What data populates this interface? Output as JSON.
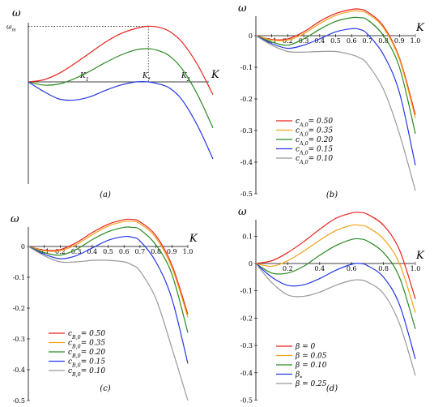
{
  "colors": {
    "red": "#e8231f",
    "orange": "#f3a21c",
    "green": "#2a8a22",
    "blue": "#2438e6",
    "gray": "#999999"
  },
  "chart_data": [
    {
      "panel": "(a)",
      "type": "line",
      "ylabel": "ω",
      "xlabel": "K",
      "annotations": {
        "omega_max": "ω_m",
        "k1": "K_1",
        "kstar": "K_*",
        "k2": "K_2"
      },
      "x": [
        0.0,
        0.1,
        0.2,
        0.3,
        0.4,
        0.5,
        0.6,
        0.7,
        0.78,
        0.85,
        0.92,
        1.0,
        1.1,
        1.2
      ],
      "series": [
        {
          "color": "red",
          "values": [
            0,
            0.02,
            0.08,
            0.17,
            0.27,
            0.37,
            0.45,
            0.5,
            0.52,
            0.51,
            0.47,
            0.37,
            0.16,
            -0.12
          ]
        },
        {
          "color": "green",
          "values": [
            0,
            -0.03,
            -0.02,
            0.03,
            0.1,
            0.18,
            0.25,
            0.3,
            0.31,
            0.29,
            0.24,
            0.12,
            -0.12,
            -0.43
          ]
        },
        {
          "color": "blue",
          "values": [
            0,
            -0.09,
            -0.16,
            -0.17,
            -0.14,
            -0.08,
            -0.03,
            0.0,
            0.0,
            -0.02,
            -0.06,
            -0.17,
            -0.41,
            -0.72
          ]
        }
      ]
    },
    {
      "panel": "(b)",
      "type": "line",
      "ylabel": "ω",
      "xlabel": "K",
      "xticks": [
        "0.1",
        "0.2",
        "0.3",
        "0.4",
        "0.5",
        "0.6",
        "0.7",
        "0.8",
        "0.9",
        "1.0"
      ],
      "yticks": [
        "0",
        "-0.1",
        "-0.2",
        "-0.3",
        "-0.4",
        "-0.5"
      ],
      "xlim": [
        0,
        1.0
      ],
      "ylim": [
        -0.5,
        0.08
      ],
      "legend": [
        "c_{A,0}= 0.50",
        "c_{A,0}= 0.35",
        "c_{A,0}= 0.20",
        "c_{A,0}= 0.15",
        "c_{A,0}= 0.10"
      ],
      "x": [
        0.0,
        0.1,
        0.2,
        0.3,
        0.4,
        0.5,
        0.6,
        0.65,
        0.7,
        0.8,
        0.9,
        1.0
      ],
      "series": [
        {
          "name": "c_{A,0}= 0.50",
          "color": "red",
          "values": [
            0,
            -0.012,
            -0.01,
            0.012,
            0.045,
            0.07,
            0.083,
            0.084,
            0.075,
            0.03,
            -0.07,
            -0.25
          ]
        },
        {
          "name": "c_{A,0}= 0.35",
          "color": "orange",
          "values": [
            0,
            -0.014,
            -0.014,
            0.006,
            0.038,
            0.064,
            0.077,
            0.078,
            0.07,
            0.025,
            -0.075,
            -0.26
          ]
        },
        {
          "name": "c_{A,0}= 0.20",
          "color": "green",
          "values": [
            0,
            -0.02,
            -0.03,
            -0.01,
            0.02,
            0.045,
            0.057,
            0.057,
            0.05,
            0.0,
            -0.1,
            -0.31
          ]
        },
        {
          "name": "c_{A,0}= 0.15",
          "color": "blue",
          "values": [
            0,
            -0.025,
            -0.04,
            -0.03,
            -0.01,
            0.012,
            0.022,
            0.02,
            0.005,
            -0.06,
            -0.18,
            -0.41
          ]
        },
        {
          "name": "c_{A,0}= 0.10",
          "color": "gray",
          "values": [
            0,
            -0.03,
            -0.05,
            -0.052,
            -0.05,
            -0.05,
            -0.06,
            -0.07,
            -0.09,
            -0.17,
            -0.31,
            -0.49
          ]
        }
      ]
    },
    {
      "panel": "(c)",
      "type": "line",
      "ylabel": "ω",
      "xlabel": "K",
      "xticks": [
        "0.1",
        "0.2",
        "0.3",
        "0.4",
        "0.5",
        "0.6",
        "0.7",
        "0.8",
        "0.9",
        "1.0"
      ],
      "yticks": [
        "0",
        "-0.1",
        "-0.2",
        "-0.3",
        "-0.4",
        "-0.5"
      ],
      "xlim": [
        0,
        1.0
      ],
      "ylim": [
        -0.5,
        0.09
      ],
      "legend": [
        "c_{B,0}= 0.50",
        "c_{B,0}= 0.35",
        "c_{B,0}= 0.20",
        "c_{B,0}= 0.15",
        "c_{B,0}= 0.10"
      ],
      "x": [
        0.0,
        0.1,
        0.2,
        0.3,
        0.4,
        0.5,
        0.6,
        0.65,
        0.7,
        0.8,
        0.9,
        1.0
      ],
      "series": [
        {
          "name": "c_{B,0}= 0.50",
          "color": "red",
          "values": [
            0,
            -0.012,
            -0.01,
            0.012,
            0.045,
            0.072,
            0.087,
            0.088,
            0.08,
            0.035,
            -0.06,
            -0.22
          ]
        },
        {
          "name": "c_{B,0}= 0.35",
          "color": "orange",
          "values": [
            0,
            -0.014,
            -0.014,
            0.006,
            0.038,
            0.066,
            0.081,
            0.082,
            0.074,
            0.028,
            -0.068,
            -0.23
          ]
        },
        {
          "name": "c_{B,0}= 0.20",
          "color": "green",
          "values": [
            0,
            -0.02,
            -0.028,
            -0.01,
            0.022,
            0.048,
            0.062,
            0.062,
            0.055,
            0.005,
            -0.09,
            -0.28
          ]
        },
        {
          "name": "c_{B,0}= 0.15",
          "color": "blue",
          "values": [
            0,
            -0.025,
            -0.04,
            -0.03,
            -0.005,
            0.02,
            0.032,
            0.03,
            0.018,
            -0.05,
            -0.17,
            -0.38
          ]
        },
        {
          "name": "c_{B,0}= 0.10",
          "color": "gray",
          "values": [
            0,
            -0.03,
            -0.05,
            -0.05,
            -0.045,
            -0.045,
            -0.05,
            -0.06,
            -0.08,
            -0.17,
            -0.33,
            -0.5
          ]
        }
      ]
    },
    {
      "panel": "(d)",
      "type": "line",
      "ylabel": "ω",
      "xlabel": "K",
      "xticks": [
        "0.2",
        "0.4",
        "0.6",
        "0.8",
        "1.0"
      ],
      "yticks": [
        "0.1",
        "0",
        "-0.1",
        "-0.2",
        "-0.3",
        "-0.4",
        "-0.5"
      ],
      "xlim": [
        0,
        1.0
      ],
      "ylim": [
        -0.5,
        0.19
      ],
      "legend": [
        "β = 0",
        "β = 0.05",
        "β = 0.10",
        "β_*",
        "β = 0.25"
      ],
      "x": [
        0.0,
        0.1,
        0.2,
        0.3,
        0.4,
        0.5,
        0.6,
        0.65,
        0.7,
        0.8,
        0.9,
        1.0
      ],
      "series": [
        {
          "name": "β = 0",
          "color": "red",
          "values": [
            0,
            0.01,
            0.04,
            0.08,
            0.125,
            0.165,
            0.185,
            0.187,
            0.18,
            0.14,
            0.05,
            -0.13
          ]
        },
        {
          "name": "β = 0.05",
          "color": "orange",
          "values": [
            0,
            -0.01,
            0.01,
            0.045,
            0.085,
            0.12,
            0.14,
            0.14,
            0.133,
            0.09,
            0.0,
            -0.18
          ]
        },
        {
          "name": "β = 0.10",
          "color": "green",
          "values": [
            0,
            -0.035,
            -0.035,
            -0.01,
            0.03,
            0.065,
            0.088,
            0.09,
            0.082,
            0.04,
            -0.05,
            -0.24
          ]
        },
        {
          "name": "β_*",
          "color": "blue",
          "values": [
            0,
            -0.05,
            -0.08,
            -0.078,
            -0.055,
            -0.025,
            -0.003,
            0.0,
            -0.008,
            -0.05,
            -0.15,
            -0.35
          ]
        },
        {
          "name": "β = 0.25",
          "color": "gray",
          "values": [
            0,
            -0.07,
            -0.115,
            -0.12,
            -0.105,
            -0.08,
            -0.062,
            -0.06,
            -0.068,
            -0.11,
            -0.22,
            -0.41
          ]
        }
      ]
    }
  ]
}
